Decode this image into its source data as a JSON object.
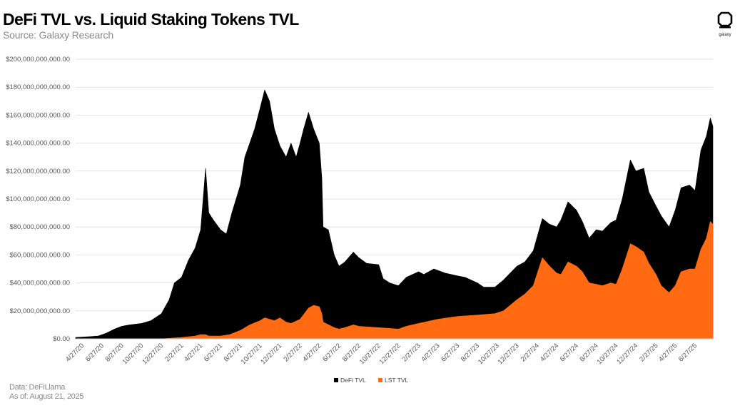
{
  "title": "DeFi TVL vs. Liquid Staking Tokens TVL",
  "subtitle": "Source: Galaxy Research",
  "logo": {
    "icon": "galaxy-logo-icon",
    "text": "galaxy"
  },
  "footer": {
    "data_source": "Data: DeFiLlama",
    "as_of": "As of: August 21, 2025"
  },
  "colors": {
    "defi": "#000000",
    "lst": "#ff6a13",
    "grid": "#e3e3e3",
    "axis": "#c8c8c8"
  },
  "chart_data": {
    "type": "area",
    "title": "DeFi TVL vs. Liquid Staking Tokens TVL",
    "xlabel": "",
    "ylabel": "",
    "ylim": [
      0,
      200000000000
    ],
    "y_ticks": [
      0,
      20000000000,
      40000000000,
      60000000000,
      80000000000,
      100000000000,
      120000000000,
      140000000000,
      160000000000,
      180000000000,
      200000000000
    ],
    "y_tick_labels": [
      "$0.00",
      "$20,000,000,000.00",
      "$40,000,000,000.00",
      "$60,000,000,000.00",
      "$80,000,000,000.00",
      "$100,000,000,000.00",
      "$120,000,000,000.00",
      "$140,000,000,000.00",
      "$160,000,000,000.00",
      "$180,000,000,000.00",
      "$200,000,000,000.00"
    ],
    "xlim": [
      "2020-04-07",
      "2025-08-21"
    ],
    "x_ticks": [
      "2020-04-27",
      "2020-06-27",
      "2020-08-27",
      "2020-10-27",
      "2020-12-27",
      "2021-02-27",
      "2021-04-27",
      "2021-06-27",
      "2021-08-27",
      "2021-10-27",
      "2021-12-27",
      "2022-02-27",
      "2022-04-27",
      "2022-06-27",
      "2022-08-27",
      "2022-10-27",
      "2022-12-27",
      "2023-02-27",
      "2023-04-27",
      "2023-06-27",
      "2023-08-27",
      "2023-10-27",
      "2023-12-27",
      "2024-02-27",
      "2024-04-27",
      "2024-06-27",
      "2024-08-27",
      "2024-10-27",
      "2024-12-27",
      "2025-02-27",
      "2025-04-27",
      "2025-06-27"
    ],
    "x_tick_labels": [
      "4/27/20",
      "6/27/20",
      "8/27/20",
      "10/27/20",
      "12/27/20",
      "2/27/21",
      "4/27/21",
      "6/27/21",
      "8/27/21",
      "10/27/21",
      "12/27/21",
      "2/27/22",
      "4/27/22",
      "6/27/22",
      "8/27/22",
      "10/27/22",
      "12/27/22",
      "2/27/23",
      "4/27/23",
      "6/27/23",
      "8/27/23",
      "10/27/23",
      "12/27/23",
      "2/27/24",
      "4/27/24",
      "6/27/24",
      "8/27/24",
      "10/27/24",
      "12/27/24",
      "2/27/25",
      "4/27/25",
      "6/27/25"
    ],
    "grid": true,
    "legend_position": "bottom-center",
    "series": [
      {
        "name": "DeFi TVL",
        "color": "#000000",
        "points": [
          [
            "2020-04-07",
            1000000000
          ],
          [
            "2020-05-15",
            1500000000
          ],
          [
            "2020-06-15",
            2000000000
          ],
          [
            "2020-07-10",
            4000000000
          ],
          [
            "2020-08-05",
            7000000000
          ],
          [
            "2020-08-27",
            9000000000
          ],
          [
            "2020-09-20",
            10000000000
          ],
          [
            "2020-10-27",
            11000000000
          ],
          [
            "2020-11-25",
            13000000000
          ],
          [
            "2020-12-27",
            18000000000
          ],
          [
            "2021-01-20",
            28000000000
          ],
          [
            "2021-02-05",
            40000000000
          ],
          [
            "2021-02-27",
            44000000000
          ],
          [
            "2021-03-20",
            56000000000
          ],
          [
            "2021-04-10",
            65000000000
          ],
          [
            "2021-04-27",
            78000000000
          ],
          [
            "2021-05-12",
            122000000000
          ],
          [
            "2021-05-22",
            90000000000
          ],
          [
            "2021-06-05",
            85000000000
          ],
          [
            "2021-06-27",
            78000000000
          ],
          [
            "2021-07-15",
            75000000000
          ],
          [
            "2021-08-01",
            90000000000
          ],
          [
            "2021-08-27",
            110000000000
          ],
          [
            "2021-09-10",
            130000000000
          ],
          [
            "2021-09-25",
            140000000000
          ],
          [
            "2021-10-10",
            150000000000
          ],
          [
            "2021-10-27",
            165000000000
          ],
          [
            "2021-11-10",
            178000000000
          ],
          [
            "2021-11-25",
            170000000000
          ],
          [
            "2021-12-10",
            150000000000
          ],
          [
            "2021-12-27",
            138000000000
          ],
          [
            "2022-01-15",
            130000000000
          ],
          [
            "2022-01-30",
            140000000000
          ],
          [
            "2022-02-15",
            130000000000
          ],
          [
            "2022-02-27",
            140000000000
          ],
          [
            "2022-03-10",
            150000000000
          ],
          [
            "2022-03-25",
            162000000000
          ],
          [
            "2022-04-10",
            150000000000
          ],
          [
            "2022-04-27",
            140000000000
          ],
          [
            "2022-05-05",
            115000000000
          ],
          [
            "2022-05-09",
            80000000000
          ],
          [
            "2022-05-25",
            78000000000
          ],
          [
            "2022-06-12",
            60000000000
          ],
          [
            "2022-06-27",
            52000000000
          ],
          [
            "2022-07-15",
            55000000000
          ],
          [
            "2022-08-10",
            62000000000
          ],
          [
            "2022-08-27",
            58000000000
          ],
          [
            "2022-09-20",
            54000000000
          ],
          [
            "2022-10-27",
            53000000000
          ],
          [
            "2022-11-10",
            43000000000
          ],
          [
            "2022-11-30",
            40000000000
          ],
          [
            "2022-12-27",
            38000000000
          ],
          [
            "2023-01-20",
            44000000000
          ],
          [
            "2023-02-27",
            48000000000
          ],
          [
            "2023-03-15",
            46000000000
          ],
          [
            "2023-04-15",
            50000000000
          ],
          [
            "2023-04-27",
            49000000000
          ],
          [
            "2023-05-20",
            47000000000
          ],
          [
            "2023-06-27",
            45000000000
          ],
          [
            "2023-07-20",
            44000000000
          ],
          [
            "2023-08-27",
            40000000000
          ],
          [
            "2023-09-15",
            37000000000
          ],
          [
            "2023-10-20",
            37000000000
          ],
          [
            "2023-11-15",
            42000000000
          ],
          [
            "2023-12-27",
            52000000000
          ],
          [
            "2024-01-20",
            55000000000
          ],
          [
            "2024-02-15",
            63000000000
          ],
          [
            "2024-03-14",
            86000000000
          ],
          [
            "2024-04-05",
            82000000000
          ],
          [
            "2024-04-27",
            80000000000
          ],
          [
            "2024-05-10",
            85000000000
          ],
          [
            "2024-06-01",
            98000000000
          ],
          [
            "2024-06-27",
            92000000000
          ],
          [
            "2024-07-15",
            84000000000
          ],
          [
            "2024-08-05",
            72000000000
          ],
          [
            "2024-08-27",
            78000000000
          ],
          [
            "2024-09-15",
            77000000000
          ],
          [
            "2024-10-10",
            83000000000
          ],
          [
            "2024-10-27",
            85000000000
          ],
          [
            "2024-11-15",
            100000000000
          ],
          [
            "2024-12-10",
            128000000000
          ],
          [
            "2024-12-27",
            120000000000
          ],
          [
            "2025-01-20",
            122000000000
          ],
          [
            "2025-02-05",
            105000000000
          ],
          [
            "2025-02-27",
            95000000000
          ],
          [
            "2025-03-15",
            88000000000
          ],
          [
            "2025-04-08",
            80000000000
          ],
          [
            "2025-04-27",
            92000000000
          ],
          [
            "2025-05-15",
            108000000000
          ],
          [
            "2025-06-10",
            110000000000
          ],
          [
            "2025-06-27",
            106000000000
          ],
          [
            "2025-07-15",
            135000000000
          ],
          [
            "2025-08-01",
            145000000000
          ],
          [
            "2025-08-13",
            158000000000
          ],
          [
            "2025-08-21",
            152000000000
          ]
        ]
      },
      {
        "name": "LST TVL",
        "color": "#ff6a13",
        "points": [
          [
            "2020-04-07",
            0
          ],
          [
            "2020-12-27",
            0
          ],
          [
            "2021-01-15",
            300000000
          ],
          [
            "2021-02-27",
            1000000000
          ],
          [
            "2021-04-10",
            2000000000
          ],
          [
            "2021-04-27",
            3000000000
          ],
          [
            "2021-05-12",
            3000000000
          ],
          [
            "2021-05-22",
            2000000000
          ],
          [
            "2021-06-27",
            2000000000
          ],
          [
            "2021-07-25",
            3000000000
          ],
          [
            "2021-08-27",
            6000000000
          ],
          [
            "2021-09-25",
            10000000000
          ],
          [
            "2021-10-27",
            13000000000
          ],
          [
            "2021-11-10",
            15000000000
          ],
          [
            "2021-12-10",
            13000000000
          ],
          [
            "2021-12-27",
            15000000000
          ],
          [
            "2022-01-15",
            12000000000
          ],
          [
            "2022-01-30",
            11000000000
          ],
          [
            "2022-02-27",
            14000000000
          ],
          [
            "2022-03-25",
            22000000000
          ],
          [
            "2022-04-10",
            24000000000
          ],
          [
            "2022-04-27",
            23000000000
          ],
          [
            "2022-05-05",
            18000000000
          ],
          [
            "2022-05-09",
            12000000000
          ],
          [
            "2022-06-12",
            8000000000
          ],
          [
            "2022-06-27",
            7000000000
          ],
          [
            "2022-07-15",
            8000000000
          ],
          [
            "2022-08-10",
            10000000000
          ],
          [
            "2022-08-27",
            9000000000
          ],
          [
            "2022-10-27",
            8000000000
          ],
          [
            "2022-12-27",
            7000000000
          ],
          [
            "2023-01-20",
            9000000000
          ],
          [
            "2023-02-27",
            11000000000
          ],
          [
            "2023-04-27",
            14000000000
          ],
          [
            "2023-06-27",
            16000000000
          ],
          [
            "2023-08-27",
            17000000000
          ],
          [
            "2023-10-20",
            18000000000
          ],
          [
            "2023-11-15",
            20000000000
          ],
          [
            "2023-12-27",
            28000000000
          ],
          [
            "2024-01-20",
            32000000000
          ],
          [
            "2024-02-15",
            38000000000
          ],
          [
            "2024-03-14",
            58000000000
          ],
          [
            "2024-04-05",
            52000000000
          ],
          [
            "2024-04-27",
            47000000000
          ],
          [
            "2024-05-10",
            46000000000
          ],
          [
            "2024-06-01",
            55000000000
          ],
          [
            "2024-06-27",
            52000000000
          ],
          [
            "2024-07-15",
            48000000000
          ],
          [
            "2024-08-05",
            40000000000
          ],
          [
            "2024-08-27",
            39000000000
          ],
          [
            "2024-09-15",
            38000000000
          ],
          [
            "2024-10-10",
            40000000000
          ],
          [
            "2024-10-27",
            39000000000
          ],
          [
            "2024-11-15",
            50000000000
          ],
          [
            "2024-12-10",
            68000000000
          ],
          [
            "2024-12-27",
            66000000000
          ],
          [
            "2025-01-20",
            62000000000
          ],
          [
            "2025-02-05",
            54000000000
          ],
          [
            "2025-02-27",
            46000000000
          ],
          [
            "2025-03-15",
            38000000000
          ],
          [
            "2025-04-08",
            33000000000
          ],
          [
            "2025-04-27",
            38000000000
          ],
          [
            "2025-05-15",
            48000000000
          ],
          [
            "2025-06-10",
            50000000000
          ],
          [
            "2025-06-27",
            50000000000
          ],
          [
            "2025-07-15",
            64000000000
          ],
          [
            "2025-08-01",
            72000000000
          ],
          [
            "2025-08-13",
            84000000000
          ],
          [
            "2025-08-21",
            82000000000
          ]
        ]
      }
    ]
  }
}
